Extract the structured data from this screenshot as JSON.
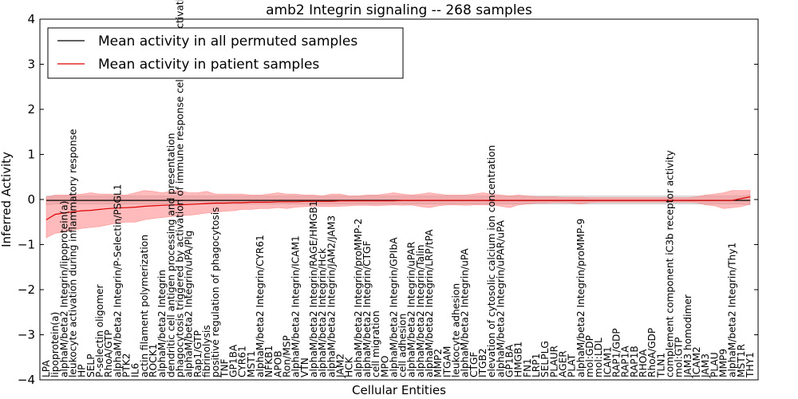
{
  "chart_data": {
    "type": "line",
    "title": "amb2 Integrin signaling -- 268 samples",
    "xlabel": "Cellular Entities",
    "ylabel": "Inferred Activity",
    "ylim": [
      -4,
      4
    ],
    "yticks": [
      -4,
      -3,
      -2,
      -1,
      0,
      1,
      2,
      3,
      4
    ],
    "grid": false,
    "legend_position": "top-left",
    "entities": [
      "LPA",
      "lipoprotein(a)",
      "alphaM/beta2 Integrin/lipoprotein(a)",
      "leukocyte activation during inflammatory response",
      "HP",
      "SELP",
      "P-selectin oligomer",
      "RhoA/GTP",
      "alphaM/beta2 Integrin/P-Selectin/PSGL1",
      "PTK2",
      "IL6",
      "actin filament polymerization",
      "ROCK1",
      "alphaM/beta2 Integrin",
      "dendritic cell antigen processing and presentation",
      "phagocytosis triggered by activation of immune response cell surface activating receptor",
      "alphaM/beta2 Integrin/uPA/Plg",
      "Rap1/GTP",
      "fibrinolysis",
      "positive regulation of phagocytosis",
      "TNF",
      "GP1BA",
      "CYR61",
      "MST1",
      "alphaM/beta2 Integrin/CYR61",
      "NFKB1",
      "APOB",
      "Ron/MSP",
      "alphaM/beta2 Integrin/ICAM1",
      "VTN",
      "alphaM/beta2 Integrin/RAGE/HMGB1",
      "alphaM/beta2 Integrin/Hck",
      "alphaM/beta2 Integrin/JAM2/JAM3",
      "JAM2",
      "HCK",
      "alphaM/beta2 Integrin/proMMP-2",
      "alphaM/beta2 Integrin/CTGF",
      "cell migration",
      "MPO",
      "alphaM/beta2 Integrin/GPIbA",
      "cell adhesion",
      "alphaM/beta2 Integrin/uPAR",
      "alphaM/beta2 Integrin/Talin",
      "alphaM/beta2 Integrin/LRP/tPA",
      "MMP2",
      "ITGAM",
      "leukocyte adhesion",
      "alphaM/beta2 Integrin/uPA",
      "CTGF",
      "ITGB2",
      "elevation of cytosolic calcium ion concentration",
      "alphaM/beta2 Integrin/uPAR/uPA",
      "GP1BA",
      "HMGB1",
      "FN1",
      "LRP1",
      "SELPLG",
      "PLAUR",
      "AGER",
      "PLAT",
      "alphaM/beta2 Integrin/proMMP-9",
      "mol:GDP",
      "mol:LDL",
      "ICAM1",
      "RAP1/GDP",
      "RAP1A",
      "RAP1B",
      "RHOA",
      "RhoA/GDP",
      "TLN1",
      "complement component iC3b receptor activity",
      "mol:GTP",
      "JAM3 homodimer",
      "ICAM2",
      "JAM3",
      "PLAU",
      "MMP9",
      "alphaM/beta2 Integrin/Thy1",
      "MST1R",
      "THY1"
    ],
    "series": [
      {
        "name": "Mean activity in all permuted samples",
        "color": "#000000",
        "band_color": "#aaaaaa",
        "values": [
          -0.02,
          -0.02,
          -0.02,
          -0.02,
          -0.02,
          -0.02,
          -0.02,
          -0.02,
          -0.02,
          -0.02,
          -0.02,
          -0.02,
          -0.02,
          -0.02,
          -0.02,
          -0.02,
          -0.02,
          -0.02,
          -0.02,
          -0.02,
          -0.02,
          -0.02,
          -0.02,
          -0.02,
          -0.02,
          -0.02,
          -0.02,
          -0.02,
          -0.02,
          -0.02,
          -0.02,
          -0.02,
          -0.02,
          -0.02,
          -0.02,
          -0.02,
          -0.02,
          -0.02,
          -0.02,
          -0.02,
          -0.02,
          -0.02,
          -0.02,
          -0.02,
          -0.02,
          -0.02,
          -0.02,
          -0.02,
          -0.02,
          -0.02,
          -0.02,
          -0.02,
          -0.02,
          -0.02,
          -0.02,
          -0.02,
          -0.02,
          -0.02,
          -0.02,
          -0.02,
          -0.02,
          -0.02,
          -0.02,
          -0.02,
          -0.02,
          -0.02,
          -0.02,
          -0.02,
          -0.02,
          -0.02,
          -0.02,
          -0.02,
          -0.02,
          -0.02,
          -0.02,
          -0.02,
          -0.02,
          -0.02,
          -0.02,
          -0.02
        ],
        "lower": [
          -0.12,
          -0.1,
          -0.1,
          -0.1,
          -0.1,
          -0.1,
          -0.1,
          -0.1,
          -0.1,
          -0.1,
          -0.1,
          -0.1,
          -0.1,
          -0.1,
          -0.1,
          -0.1,
          -0.1,
          -0.1,
          -0.1,
          -0.1,
          -0.1,
          -0.1,
          -0.1,
          -0.1,
          -0.1,
          -0.1,
          -0.1,
          -0.1,
          -0.1,
          -0.1,
          -0.1,
          -0.1,
          -0.1,
          -0.1,
          -0.1,
          -0.1,
          -0.1,
          -0.1,
          -0.1,
          -0.1,
          -0.1,
          -0.1,
          -0.1,
          -0.1,
          -0.1,
          -0.1,
          -0.1,
          -0.1,
          -0.1,
          -0.1,
          -0.1,
          -0.1,
          -0.1,
          -0.1,
          -0.1,
          -0.1,
          -0.1,
          -0.1,
          -0.1,
          -0.1,
          -0.1,
          -0.1,
          -0.1,
          -0.1,
          -0.1,
          -0.1,
          -0.1,
          -0.1,
          -0.1,
          -0.1,
          -0.1,
          -0.1,
          -0.1,
          -0.1,
          -0.1,
          -0.1,
          -0.1,
          -0.1,
          -0.1,
          -0.12
        ],
        "upper": [
          0.08,
          0.08,
          0.08,
          0.08,
          0.08,
          0.08,
          0.08,
          0.08,
          0.08,
          0.08,
          0.08,
          0.08,
          0.08,
          0.08,
          0.08,
          0.08,
          0.08,
          0.08,
          0.08,
          0.08,
          0.08,
          0.08,
          0.08,
          0.08,
          0.08,
          0.08,
          0.08,
          0.08,
          0.08,
          0.08,
          0.08,
          0.08,
          0.08,
          0.08,
          0.08,
          0.08,
          0.08,
          0.08,
          0.08,
          0.08,
          0.08,
          0.08,
          0.08,
          0.08,
          0.08,
          0.08,
          0.08,
          0.08,
          0.08,
          0.08,
          0.08,
          0.08,
          0.08,
          0.08,
          0.08,
          0.08,
          0.08,
          0.08,
          0.08,
          0.08,
          0.08,
          0.08,
          0.08,
          0.08,
          0.08,
          0.08,
          0.08,
          0.08,
          0.08,
          0.08,
          0.08,
          0.08,
          0.08,
          0.08,
          0.08,
          0.08,
          0.08,
          0.08,
          0.08,
          0.1
        ]
      },
      {
        "name": "Mean activity in patient samples",
        "color": "#dd0000",
        "band_color": "#ff7777",
        "values": [
          -0.45,
          -0.33,
          -0.3,
          -0.27,
          -0.25,
          -0.24,
          -0.22,
          -0.2,
          -0.19,
          -0.18,
          -0.17,
          -0.15,
          -0.14,
          -0.13,
          -0.12,
          -0.12,
          -0.11,
          -0.1,
          -0.09,
          -0.08,
          -0.08,
          -0.07,
          -0.07,
          -0.06,
          -0.06,
          -0.06,
          -0.05,
          -0.05,
          -0.05,
          -0.04,
          -0.04,
          -0.04,
          -0.04,
          -0.03,
          -0.03,
          -0.03,
          -0.03,
          -0.03,
          -0.03,
          -0.03,
          -0.02,
          -0.02,
          -0.02,
          -0.02,
          -0.02,
          -0.02,
          -0.02,
          -0.02,
          -0.02,
          -0.02,
          -0.02,
          -0.02,
          -0.02,
          -0.02,
          -0.02,
          -0.02,
          -0.02,
          -0.02,
          -0.02,
          -0.02,
          -0.02,
          -0.02,
          -0.02,
          -0.02,
          -0.02,
          -0.02,
          -0.02,
          -0.02,
          -0.02,
          -0.02,
          -0.02,
          -0.02,
          -0.02,
          -0.02,
          -0.02,
          -0.02,
          -0.02,
          -0.02,
          0.02,
          0.06
        ],
        "lower": [
          -0.85,
          -0.75,
          -0.72,
          -0.68,
          -0.64,
          -0.62,
          -0.6,
          -0.56,
          -0.52,
          -0.5,
          -0.5,
          -0.45,
          -0.42,
          -0.4,
          -0.38,
          -0.36,
          -0.35,
          -0.33,
          -0.3,
          -0.28,
          -0.26,
          -0.25,
          -0.22,
          -0.22,
          -0.2,
          -0.2,
          -0.18,
          -0.2,
          -0.17,
          -0.16,
          -0.15,
          -0.16,
          -0.16,
          -0.15,
          -0.14,
          -0.13,
          -0.13,
          -0.14,
          -0.13,
          -0.12,
          -0.13,
          -0.12,
          -0.16,
          -0.18,
          -0.14,
          -0.12,
          -0.12,
          -0.13,
          -0.12,
          -0.12,
          -0.12,
          -0.15,
          -0.18,
          -0.12,
          -0.1,
          -0.08,
          -0.08,
          -0.07,
          -0.07,
          -0.08,
          -0.1,
          -0.07,
          -0.06,
          -0.06,
          -0.06,
          -0.06,
          -0.06,
          -0.06,
          -0.06,
          -0.06,
          -0.06,
          -0.06,
          -0.06,
          -0.07,
          -0.12,
          -0.14,
          -0.2,
          -0.18,
          -0.16,
          -0.1
        ],
        "upper": [
          0.05,
          0.1,
          0.1,
          0.1,
          0.12,
          0.15,
          0.12,
          0.12,
          0.1,
          0.1,
          0.15,
          0.2,
          0.18,
          0.15,
          0.18,
          0.2,
          0.15,
          0.15,
          0.18,
          0.12,
          0.12,
          0.12,
          0.12,
          0.1,
          0.1,
          0.12,
          0.15,
          0.12,
          0.12,
          0.1,
          0.1,
          0.08,
          0.12,
          0.12,
          0.08,
          0.08,
          0.1,
          0.1,
          0.12,
          0.15,
          0.12,
          0.1,
          0.12,
          0.15,
          0.12,
          0.1,
          0.1,
          0.1,
          0.12,
          0.15,
          0.12,
          0.1,
          0.08,
          0.1,
          0.08,
          0.06,
          0.06,
          0.06,
          0.05,
          0.05,
          0.05,
          0.04,
          0.04,
          0.04,
          0.04,
          0.04,
          0.04,
          0.04,
          0.04,
          0.04,
          0.04,
          0.04,
          0.04,
          0.06,
          0.1,
          0.12,
          0.15,
          0.2,
          0.2,
          0.2
        ]
      }
    ]
  }
}
